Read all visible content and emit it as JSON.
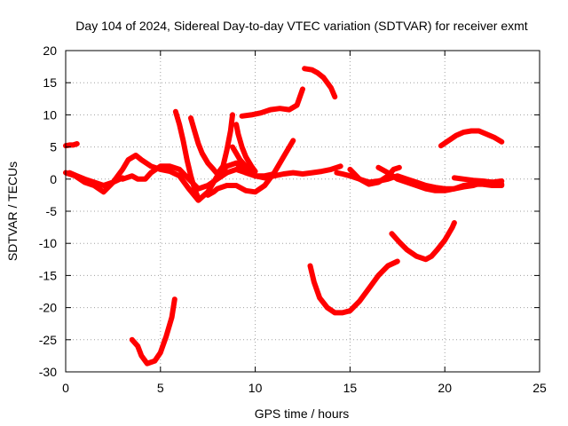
{
  "chart_data": {
    "type": "scatter",
    "title": "Day 104 of 2024, Sidereal Day-to-day VTEC variation (SDTVAR) for receiver exmt",
    "xlabel": "GPS time / hours",
    "ylabel": "SDTVAR / TECUs",
    "xlim": [
      0,
      25
    ],
    "ylim": [
      -30,
      20
    ],
    "xticks": [
      0,
      5,
      10,
      15,
      20,
      25
    ],
    "yticks": [
      -30,
      -25,
      -20,
      -15,
      -10,
      -5,
      0,
      5,
      10,
      15,
      20
    ],
    "grid": true,
    "legend": "none",
    "marker": "plus",
    "color": "#ff0000",
    "series": [
      {
        "x": [
          0.0,
          0.2,
          0.4,
          0.6
        ],
        "y": [
          5.2,
          5.3,
          5.3,
          5.5
        ]
      },
      {
        "x": [
          0.0,
          0.5,
          1.0,
          1.5,
          2.0,
          2.5,
          3.0,
          3.3,
          3.7,
          4.0,
          4.5,
          5.0,
          5.5,
          6.0,
          6.5,
          7.0,
          7.5,
          8.0,
          8.5,
          9.0,
          9.5,
          10.0,
          10.5,
          11.0,
          11.5,
          12.0,
          12.5,
          13.0,
          13.5,
          14.0,
          14.5
        ],
        "y": [
          1.0,
          0.5,
          -0.5,
          -1.0,
          -2.0,
          -0.5,
          1.5,
          3.0,
          3.7,
          3.0,
          2.0,
          1.5,
          1.2,
          0.5,
          -1.5,
          -3.3,
          -2.0,
          0.5,
          2.0,
          2.5,
          1.0,
          0.5,
          0.2,
          0.5,
          0.8,
          1.0,
          0.8,
          1.0,
          1.2,
          1.5,
          2.0
        ]
      },
      {
        "x": [
          0.2,
          0.6,
          1.0,
          1.5,
          2.0,
          2.5,
          3.0
        ],
        "y": [
          1.0,
          0.5,
          0.0,
          -0.5,
          -1.0,
          -0.5,
          0.2
        ]
      },
      {
        "x": [
          3.5,
          3.8,
          4.0,
          4.3,
          4.7,
          5.0,
          5.3,
          5.6,
          5.75
        ],
        "y": [
          -25.0,
          -26.0,
          -27.5,
          -28.7,
          -28.3,
          -27.0,
          -24.5,
          -21.5,
          -18.7
        ]
      },
      {
        "x": [
          3.0,
          3.5,
          3.8,
          4.2,
          4.5,
          5.0,
          5.5,
          6.0,
          6.5,
          7.0,
          7.5,
          8.0,
          8.5,
          9.0,
          9.5,
          10.0,
          10.5,
          11.0
        ],
        "y": [
          0.0,
          0.5,
          0.0,
          0.0,
          1.0,
          2.0,
          2.0,
          1.5,
          0.0,
          -1.5,
          -1.0,
          0.0,
          1.0,
          1.5,
          1.0,
          0.5,
          0.5,
          0.8
        ]
      },
      {
        "x": [
          5.8,
          6.0,
          6.2,
          6.4,
          6.6,
          6.8,
          7.0
        ],
        "y": [
          10.5,
          8.5,
          6.0,
          3.0,
          0.5,
          -1.5,
          -3.0
        ]
      },
      {
        "x": [
          6.6,
          6.8,
          7.0,
          7.2,
          7.5,
          7.8,
          8.0,
          8.3,
          8.5,
          8.7,
          8.8
        ],
        "y": [
          9.5,
          7.5,
          5.5,
          4.0,
          2.5,
          1.5,
          0.8,
          2.0,
          4.5,
          7.5,
          10.0
        ]
      },
      {
        "x": [
          7.5,
          7.8,
          8.0,
          8.5,
          9.0,
          9.5,
          10.0,
          10.5,
          11.0,
          11.5,
          12.0
        ],
        "y": [
          -2.5,
          -2.0,
          -1.5,
          -1.0,
          -1.0,
          -1.8,
          -2.0,
          -1.0,
          1.0,
          3.5,
          6.0
        ]
      },
      {
        "x": [
          8.8,
          9.0,
          9.2,
          9.5,
          9.8,
          10.0
        ],
        "y": [
          5.0,
          4.0,
          3.0,
          2.0,
          1.0,
          0.5
        ]
      },
      {
        "x": [
          9.0,
          9.1,
          9.3,
          9.5,
          9.8,
          10.0
        ],
        "y": [
          8.5,
          7.0,
          5.0,
          3.5,
          2.0,
          1.2
        ]
      },
      {
        "x": [
          9.3,
          9.8,
          10.3,
          10.8,
          11.3,
          11.8,
          12.2,
          12.5
        ],
        "y": [
          9.8,
          10.0,
          10.3,
          10.8,
          11.0,
          10.8,
          11.5,
          14.0
        ]
      },
      {
        "x": [
          12.6,
          13.0,
          13.3,
          13.6,
          14.0,
          14.2
        ],
        "y": [
          17.2,
          17.0,
          16.5,
          15.8,
          14.2,
          12.8
        ]
      },
      {
        "x": [
          12.9,
          13.1,
          13.4,
          13.8,
          14.2,
          14.6,
          15.0,
          15.5,
          16.0,
          16.5,
          17.0,
          17.5
        ],
        "y": [
          -13.5,
          -16.0,
          -18.5,
          -20.0,
          -20.8,
          -20.8,
          -20.5,
          -19.0,
          -17.0,
          -15.0,
          -13.5,
          -12.8
        ]
      },
      {
        "x": [
          14.3,
          14.6,
          15.0,
          15.5,
          16.0,
          16.5,
          17.0,
          17.5,
          18.0,
          18.5,
          19.0,
          19.5,
          20.0,
          20.5,
          21.0,
          21.5,
          22.0,
          22.5,
          23.0
        ],
        "y": [
          1.0,
          0.8,
          0.5,
          0.0,
          -0.5,
          -0.3,
          0.0,
          0.5,
          0.0,
          -0.5,
          -1.0,
          -1.3,
          -1.5,
          -1.5,
          -1.2,
          -1.0,
          -0.5,
          -0.5,
          -0.3
        ]
      },
      {
        "x": [
          15.0,
          15.5,
          16.0,
          16.5,
          17.0,
          17.3,
          17.6
        ],
        "y": [
          1.5,
          0.0,
          -0.8,
          -0.5,
          0.5,
          1.5,
          1.8
        ]
      },
      {
        "x": [
          16.5,
          17.0,
          17.5,
          18.0,
          18.5,
          19.0,
          19.5,
          20.0,
          20.5,
          21.0,
          21.5,
          22.0,
          22.5,
          23.0
        ],
        "y": [
          1.8,
          1.0,
          0.0,
          -0.5,
          -1.0,
          -1.5,
          -1.8,
          -1.8,
          -1.5,
          -1.0,
          -0.8,
          -0.8,
          -1.0,
          -1.0
        ]
      },
      {
        "x": [
          17.2,
          17.6,
          18.0,
          18.5,
          19.0,
          19.3,
          19.6,
          20.0,
          20.4,
          20.5
        ],
        "y": [
          -8.5,
          -9.8,
          -11.0,
          -12.0,
          -12.5,
          -12.0,
          -11.0,
          -9.5,
          -7.5,
          -6.8
        ]
      },
      {
        "x": [
          19.8,
          20.2,
          20.6,
          21.0,
          21.4,
          21.8,
          22.2,
          22.6,
          23.0
        ],
        "y": [
          5.2,
          6.0,
          6.8,
          7.3,
          7.5,
          7.5,
          7.0,
          6.5,
          5.8
        ]
      },
      {
        "x": [
          20.5,
          21.0,
          21.5,
          22.0,
          22.5,
          23.0
        ],
        "y": [
          0.2,
          0.0,
          -0.2,
          -0.3,
          -0.5,
          -0.8
        ]
      }
    ]
  }
}
